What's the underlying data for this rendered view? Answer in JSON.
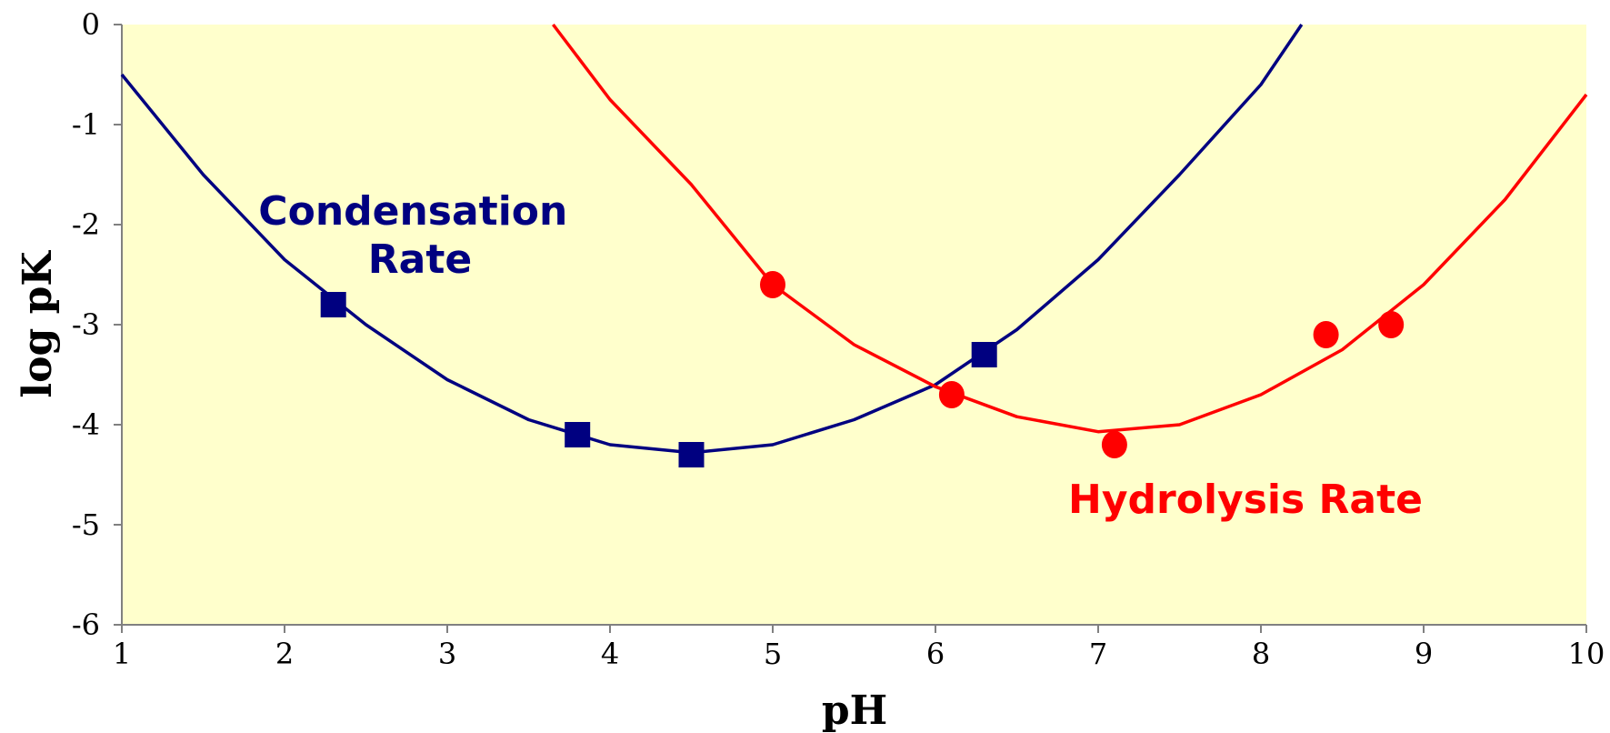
{
  "chart_data": {
    "type": "scatter",
    "title": "",
    "xlabel": "pH",
    "ylabel": "log pK",
    "xlim": [
      1,
      10
    ],
    "ylim": [
      -6,
      0
    ],
    "xticks": [
      "1",
      "2",
      "3",
      "4",
      "5",
      "6",
      "7",
      "8",
      "9",
      "10"
    ],
    "yticks": [
      "0",
      "-1",
      "-2",
      "-3",
      "-4",
      "-5",
      "-6"
    ],
    "grid": false,
    "background_color": "#FFFFCC",
    "series": [
      {
        "annotation": [
          "Condensation",
          "Rate"
        ],
        "color": "#000080",
        "marker": "square",
        "points": [
          {
            "x": 2.3,
            "y": -2.8
          },
          {
            "x": 3.8,
            "y": -4.1
          },
          {
            "x": 4.5,
            "y": -4.3
          },
          {
            "x": 6.3,
            "y": -3.3
          }
        ],
        "fit_curve": [
          {
            "x": 1.0,
            "y": -0.5
          },
          {
            "x": 1.5,
            "y": -1.5
          },
          {
            "x": 2.0,
            "y": -2.35
          },
          {
            "x": 2.5,
            "y": -3.0
          },
          {
            "x": 3.0,
            "y": -3.55
          },
          {
            "x": 3.5,
            "y": -3.95
          },
          {
            "x": 4.0,
            "y": -4.2
          },
          {
            "x": 4.5,
            "y": -4.28
          },
          {
            "x": 5.0,
            "y": -4.2
          },
          {
            "x": 5.5,
            "y": -3.95
          },
          {
            "x": 6.0,
            "y": -3.6
          },
          {
            "x": 6.5,
            "y": -3.05
          },
          {
            "x": 7.0,
            "y": -2.35
          },
          {
            "x": 7.5,
            "y": -1.5
          },
          {
            "x": 8.0,
            "y": -0.6
          },
          {
            "x": 8.25,
            "y": 0.0
          }
        ]
      },
      {
        "annotation": [
          "Hydrolysis Rate"
        ],
        "color": "#FF0000",
        "marker": "circle",
        "points": [
          {
            "x": 5.0,
            "y": -2.6
          },
          {
            "x": 6.1,
            "y": -3.7
          },
          {
            "x": 7.1,
            "y": -4.2
          },
          {
            "x": 8.4,
            "y": -3.1
          },
          {
            "x": 8.8,
            "y": -3.0
          }
        ],
        "fit_curve": [
          {
            "x": 3.65,
            "y": 0.0
          },
          {
            "x": 4.0,
            "y": -0.75
          },
          {
            "x": 4.5,
            "y": -1.6
          },
          {
            "x": 5.0,
            "y": -2.6
          },
          {
            "x": 5.5,
            "y": -3.2
          },
          {
            "x": 6.0,
            "y": -3.62
          },
          {
            "x": 6.5,
            "y": -3.92
          },
          {
            "x": 7.0,
            "y": -4.07
          },
          {
            "x": 7.5,
            "y": -4.0
          },
          {
            "x": 8.0,
            "y": -3.7
          },
          {
            "x": 8.5,
            "y": -3.25
          },
          {
            "x": 9.0,
            "y": -2.6
          },
          {
            "x": 9.5,
            "y": -1.75
          },
          {
            "x": 10.0,
            "y": -0.7
          }
        ]
      }
    ]
  }
}
